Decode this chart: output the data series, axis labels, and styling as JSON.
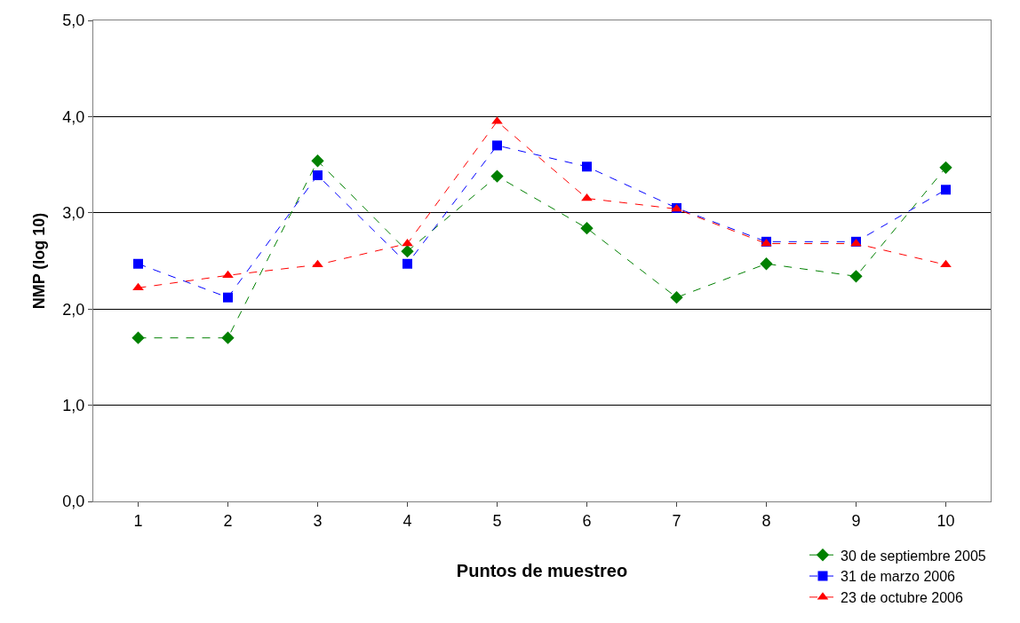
{
  "chart_data": {
    "type": "line",
    "xlabel": "Puntos de muestreo",
    "ylabel": "NMP (log 10)",
    "categories": [
      "1",
      "2",
      "3",
      "4",
      "5",
      "6",
      "7",
      "8",
      "9",
      "10"
    ],
    "ylim": [
      0,
      5
    ],
    "yticks": [
      {
        "value": 0,
        "label": "0,0"
      },
      {
        "value": 1,
        "label": "1,0"
      },
      {
        "value": 2,
        "label": "2,0"
      },
      {
        "value": 3,
        "label": "3,0"
      },
      {
        "value": 4,
        "label": "4,0"
      },
      {
        "value": 5,
        "label": "5,0"
      }
    ],
    "grid": "y",
    "legend": "bottom right",
    "line_style": "dashed",
    "series": [
      {
        "name": "30 de septiembre 2005",
        "color": "#008000",
        "marker": "diamond",
        "values": [
          1.7,
          1.7,
          3.54,
          2.6,
          3.38,
          2.84,
          2.12,
          2.47,
          2.34,
          3.47
        ]
      },
      {
        "name": "31 de marzo 2006",
        "color": "#0000ff",
        "marker": "square",
        "values": [
          2.47,
          2.12,
          3.39,
          2.47,
          3.7,
          3.48,
          3.05,
          2.7,
          2.7,
          3.24
        ]
      },
      {
        "name": "23 de octubre 2006",
        "color": "#ff0000",
        "marker": "triangle",
        "values": [
          2.22,
          2.35,
          2.46,
          2.68,
          3.95,
          3.15,
          3.04,
          2.68,
          2.68,
          2.46
        ]
      }
    ]
  }
}
